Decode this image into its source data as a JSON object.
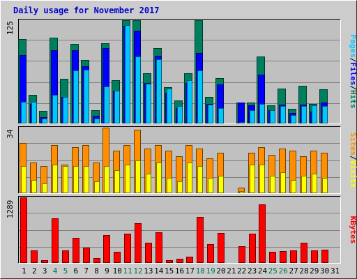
{
  "chart_data": {
    "type": "bar",
    "title": "Daily usage for November 2017",
    "colors": {
      "background": "#cccccc",
      "plot_background": "#c0c0c0",
      "grid": "#808080",
      "hits": "#007f5f",
      "files": "#0000ff",
      "pages": "#00c8ff",
      "visits": "#ff8f00",
      "sites": "#ffff00",
      "kbytes": "#ff0000",
      "weekend_label": "#006f4f",
      "weekday_label": "#000000"
    },
    "days": [
      "1",
      "2",
      "3",
      "4",
      "5",
      "6",
      "7",
      "8",
      "9",
      "10",
      "11",
      "12",
      "13",
      "14",
      "15",
      "16",
      "17",
      "18",
      "19",
      "20",
      "21",
      "22",
      "23",
      "24",
      "25",
      "26",
      "27",
      "28",
      "29",
      "30",
      "31"
    ],
    "weekend_days": [
      "4",
      "5",
      "11",
      "12",
      "18",
      "19",
      "25",
      "26"
    ],
    "panels": {
      "hits_files_pages": {
        "ymax": 125,
        "ymax_label": "125",
        "legend_parts": [
          {
            "text": "Pages",
            "color": "#00c8ff"
          },
          {
            "text": "/",
            "color": "#000000"
          },
          {
            "text": "Files",
            "color": "#0000ff"
          },
          {
            "text": "/",
            "color": "#000000"
          },
          {
            "text": "Hits",
            "color": "#007f5f"
          }
        ],
        "series": [
          {
            "key": "hits",
            "values": [
              102,
              35,
              15,
              104,
              54,
              96,
              77,
              16,
              97,
              52,
              136,
              128,
              61,
              91,
              44,
              28,
              61,
              126,
              32,
              55,
              0,
              25,
              25,
              81,
              22,
              42,
              18,
              46,
              24,
              41,
              0
            ]
          },
          {
            "key": "files",
            "values": [
              83,
              24,
              8,
              89,
              32,
              89,
              69,
              9,
              91,
              40,
              118,
              112,
              49,
              82,
              37,
              19,
              49,
              85,
              24,
              47,
              0,
              25,
              22,
              59,
              16,
              23,
              13,
              23,
              14,
              25,
              0
            ]
          },
          {
            "key": "pages",
            "values": [
              26,
              26,
              6,
              35,
              32,
              64,
              65,
              6,
              45,
              40,
              119,
              81,
              48,
              78,
              42,
              21,
              52,
              64,
              23,
              19,
              0,
              2,
              16,
              24,
              16,
              21,
              10,
              21,
              22,
              21,
              0
            ]
          }
        ]
      },
      "sites_visits": {
        "ymax": 34,
        "ymax_label": "34",
        "legend_parts": [
          {
            "text": "Sites",
            "color": "#ff8f00"
          },
          {
            "text": "/",
            "color": "#000000"
          },
          {
            "text": "Visits",
            "color": "#ffff00"
          }
        ],
        "series": [
          {
            "key": "visits",
            "values": [
              26,
              16,
              14,
              25,
              15,
              24,
              25,
              16,
              34,
              22,
              25,
              33,
              23,
              25,
              22,
              19,
              25,
              23,
              18,
              21,
              0,
              3,
              21,
              24,
              20,
              23,
              22,
              19,
              22,
              21,
              0
            ]
          },
          {
            "key": "sites",
            "values": [
              14,
              7,
              5,
              15,
              14,
              14,
              14,
              6,
              14,
              12,
              15,
              17,
              10,
              16,
              8,
              6,
              16,
              14,
              8,
              9,
              0,
              1,
              15,
              15,
              9,
              11,
              7,
              9,
              10,
              8,
              0
            ]
          }
        ]
      },
      "kbytes": {
        "ymax": 1289,
        "ymax_label": "1289",
        "legend_parts": [
          {
            "text": "KBytes",
            "color": "#ff0000"
          }
        ],
        "series": [
          {
            "key": "kbytes",
            "values": [
              1289,
              240,
              48,
              880,
              240,
              500,
              300,
              90,
              550,
              220,
              580,
              780,
              400,
              600,
              50,
              80,
              120,
              900,
              370,
              590,
              0,
              325,
              580,
              1150,
              220,
              230,
              240,
              400,
              250,
              260,
              0
            ]
          }
        ]
      }
    }
  }
}
